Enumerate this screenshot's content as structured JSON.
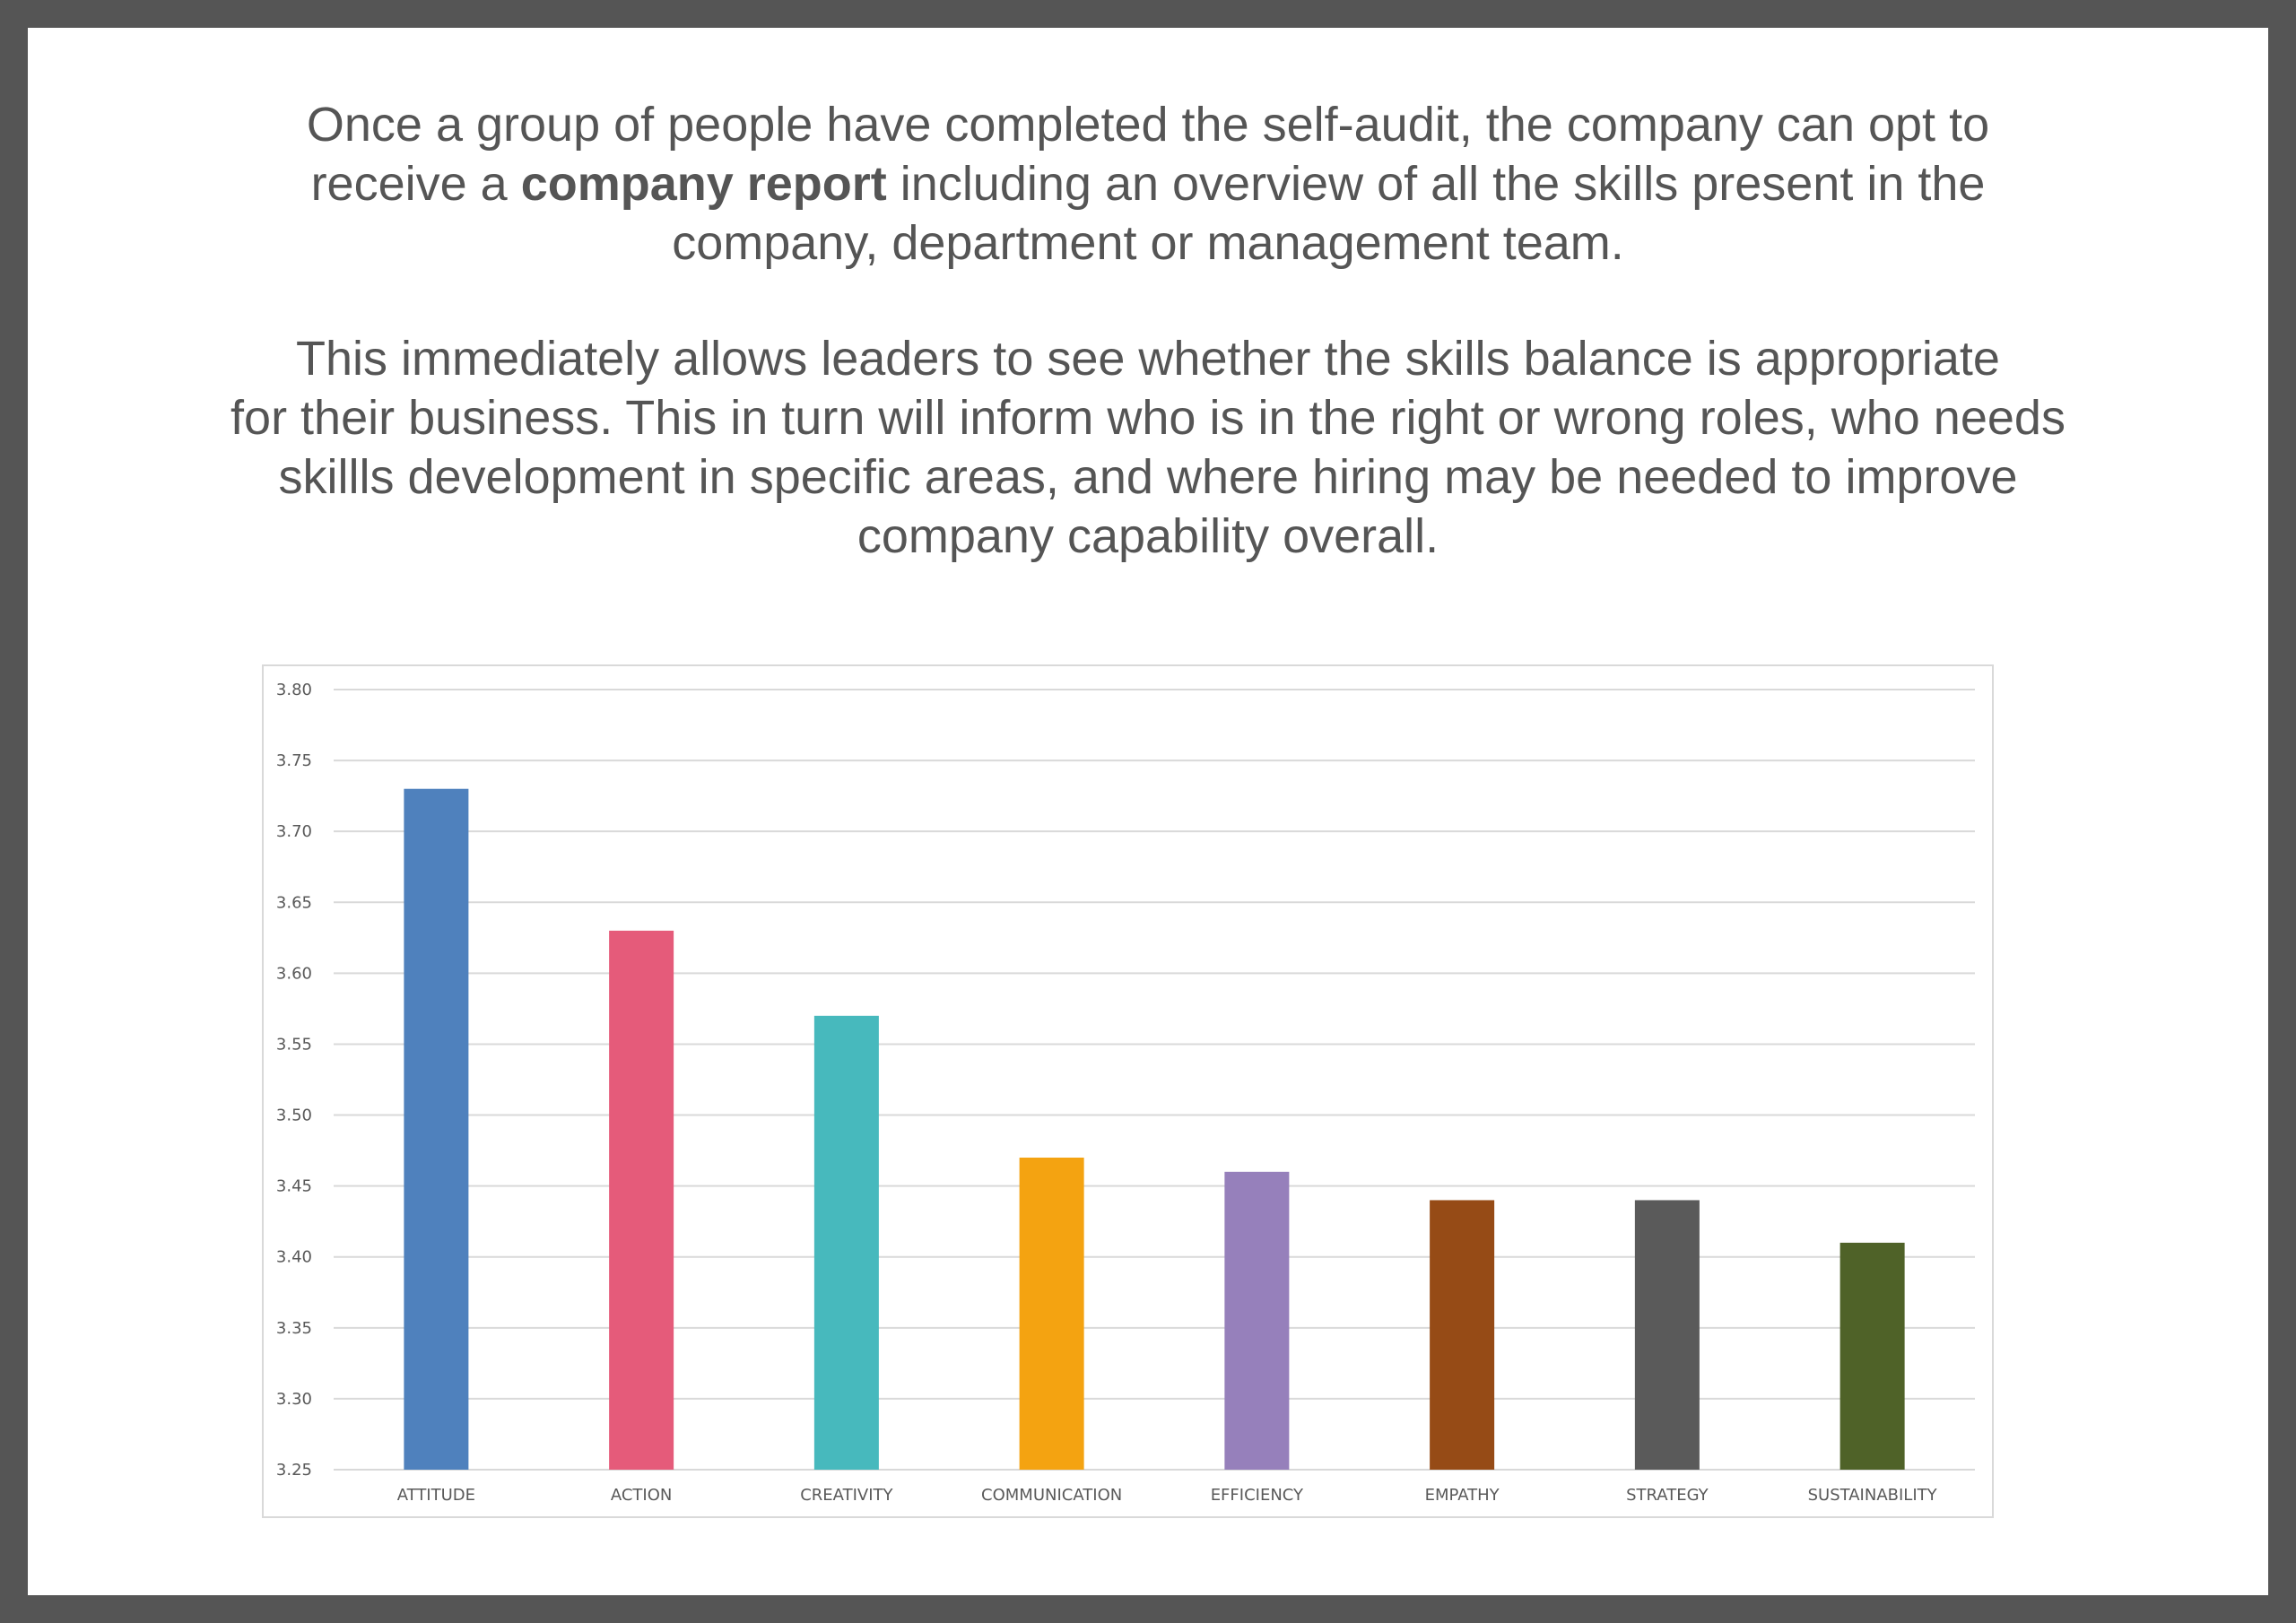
{
  "paragraph1": {
    "line1": "Once a group of people have completed the self-audit, the company can opt to",
    "line2_before": "receive a ",
    "line2_bold": "company report",
    "line2_after": " including an overview of all the skills present in the",
    "line3": "company, department or management team."
  },
  "paragraph2": {
    "lines": [
      "This immediately allows leaders to see whether the skills balance is appropriate",
      "for their business. This in turn will inform who is in the right or wrong roles, who needs",
      "skillls development in specific areas, and where hiring may be needed to improve",
      "company capability overall."
    ]
  },
  "chart_data": {
    "type": "bar",
    "title": "",
    "xlabel": "",
    "ylabel": "",
    "categories": [
      "ATTITUDE",
      "ACTION",
      "CREATIVITY",
      "COMMUNICATION",
      "EFFICIENCY",
      "EMPATHY",
      "STRATEGY",
      "SUSTAINABILITY"
    ],
    "values": [
      3.73,
      3.63,
      3.57,
      3.47,
      3.46,
      3.44,
      3.44,
      3.41
    ],
    "colors": [
      "#4f81bd",
      "#e55b7a",
      "#47b9bd",
      "#f4a311",
      "#9680bb",
      "#964b16",
      "#5a5a5a",
      "#4f6228"
    ],
    "ylim": [
      3.25,
      3.8
    ],
    "yticks": [
      "3.25",
      "3.30",
      "3.35",
      "3.40",
      "3.45",
      "3.50",
      "3.55",
      "3.60",
      "3.65",
      "3.70",
      "3.75",
      "3.80"
    ],
    "grid": true,
    "legend": "none"
  }
}
